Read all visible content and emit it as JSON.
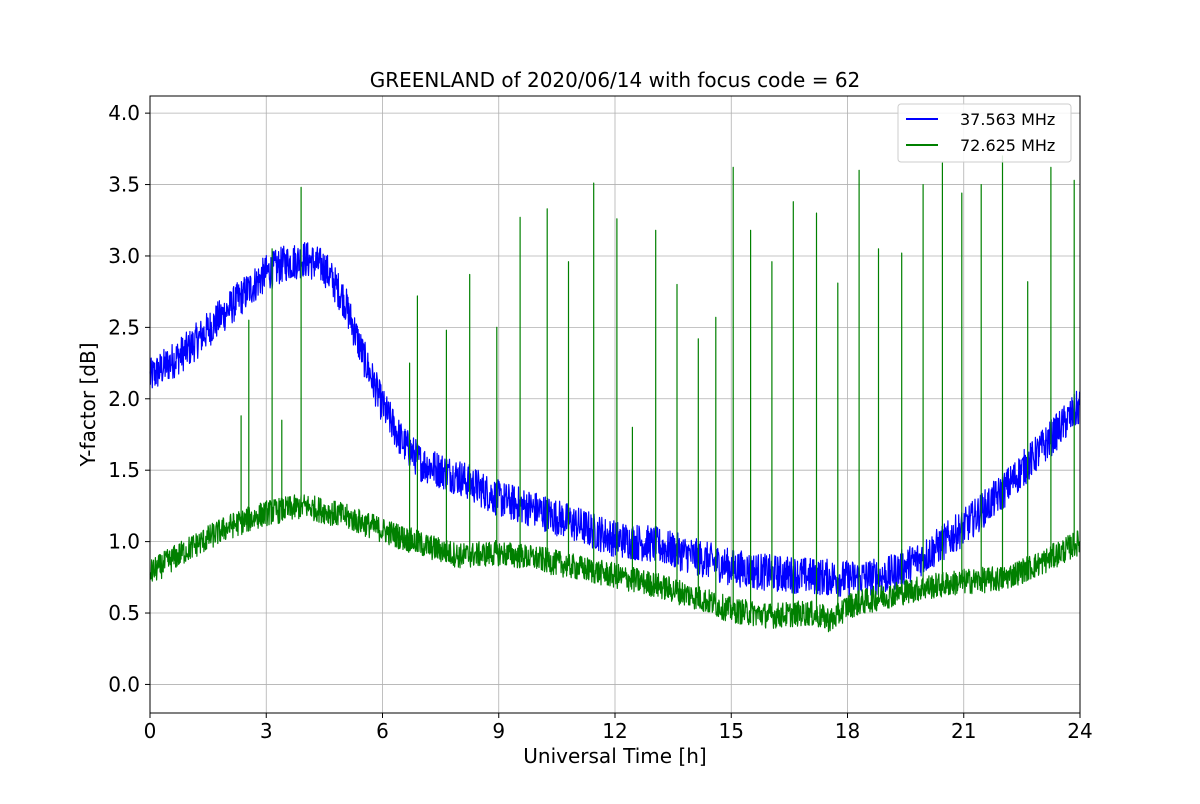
{
  "chart_data": {
    "type": "line",
    "title": "GREENLAND of 2020/06/14 with focus code = 62",
    "xlabel": "Universal Time [h]",
    "ylabel": "Y-factor [dB]",
    "xlim": [
      0,
      24
    ],
    "ylim": [
      -0.2,
      4.12
    ],
    "xticks": [
      0,
      3,
      6,
      9,
      12,
      15,
      18,
      21,
      24
    ],
    "yticks": [
      0.0,
      0.5,
      1.0,
      1.5,
      2.0,
      2.5,
      3.0,
      3.5,
      4.0
    ],
    "xtick_labels": [
      "0",
      "3",
      "6",
      "9",
      "12",
      "15",
      "18",
      "21",
      "24"
    ],
    "ytick_labels": [
      "0.0",
      "0.5",
      "1.0",
      "1.5",
      "2.0",
      "2.5",
      "3.0",
      "3.5",
      "4.0"
    ],
    "grid": true,
    "legend_position": "upper right",
    "series": [
      {
        "name": "37.563 MHz",
        "color": "#0000ff",
        "x": [
          0,
          1,
          2,
          3,
          3.5,
          4,
          4.5,
          5,
          5.5,
          6,
          6.5,
          7,
          8,
          9,
          10,
          11,
          12,
          13,
          14,
          15,
          16,
          17,
          18,
          19,
          20,
          21,
          22,
          23,
          24
        ],
        "y": [
          2.15,
          2.35,
          2.62,
          2.88,
          2.95,
          2.98,
          2.92,
          2.7,
          2.3,
          1.95,
          1.7,
          1.55,
          1.45,
          1.3,
          1.22,
          1.12,
          1.02,
          0.98,
          0.9,
          0.82,
          0.78,
          0.76,
          0.74,
          0.76,
          0.9,
          1.1,
          1.35,
          1.65,
          1.95
        ],
        "noise": 0.13
      },
      {
        "name": "72.625 MHz",
        "color": "#008000",
        "x": [
          0,
          1,
          2,
          3,
          4,
          5,
          6,
          7,
          8,
          9,
          10,
          11,
          12,
          13,
          14,
          15,
          16,
          17,
          17.6,
          18,
          19,
          20,
          21,
          22,
          23,
          24
        ],
        "y": [
          0.78,
          0.95,
          1.1,
          1.2,
          1.25,
          1.18,
          1.08,
          0.98,
          0.9,
          0.92,
          0.88,
          0.82,
          0.76,
          0.7,
          0.62,
          0.52,
          0.48,
          0.5,
          0.45,
          0.55,
          0.62,
          0.68,
          0.72,
          0.74,
          0.85,
          1.0
        ],
        "noise": 0.09,
        "spikes": [
          {
            "x": 2.35,
            "y": 1.88
          },
          {
            "x": 2.55,
            "y": 2.55
          },
          {
            "x": 3.15,
            "y": 3.05
          },
          {
            "x": 3.4,
            "y": 1.85
          },
          {
            "x": 3.9,
            "y": 3.48
          },
          {
            "x": 6.7,
            "y": 2.25
          },
          {
            "x": 6.9,
            "y": 2.72
          },
          {
            "x": 7.65,
            "y": 2.48
          },
          {
            "x": 8.25,
            "y": 2.87
          },
          {
            "x": 8.95,
            "y": 2.5
          },
          {
            "x": 9.55,
            "y": 3.27
          },
          {
            "x": 10.25,
            "y": 3.33
          },
          {
            "x": 10.8,
            "y": 2.96
          },
          {
            "x": 11.45,
            "y": 3.51
          },
          {
            "x": 12.05,
            "y": 3.26
          },
          {
            "x": 12.45,
            "y": 1.8
          },
          {
            "x": 13.05,
            "y": 3.18
          },
          {
            "x": 13.6,
            "y": 2.8
          },
          {
            "x": 14.15,
            "y": 2.42
          },
          {
            "x": 14.6,
            "y": 2.57
          },
          {
            "x": 15.05,
            "y": 3.62
          },
          {
            "x": 15.5,
            "y": 3.18
          },
          {
            "x": 16.05,
            "y": 2.96
          },
          {
            "x": 16.6,
            "y": 3.38
          },
          {
            "x": 17.2,
            "y": 3.3
          },
          {
            "x": 17.75,
            "y": 2.81
          },
          {
            "x": 18.3,
            "y": 3.6
          },
          {
            "x": 18.8,
            "y": 3.05
          },
          {
            "x": 19.4,
            "y": 3.02
          },
          {
            "x": 19.95,
            "y": 3.5
          },
          {
            "x": 20.45,
            "y": 3.65
          },
          {
            "x": 20.95,
            "y": 3.44
          },
          {
            "x": 21.45,
            "y": 3.5
          },
          {
            "x": 22.0,
            "y": 3.7
          },
          {
            "x": 22.65,
            "y": 2.82
          },
          {
            "x": 23.25,
            "y": 3.62
          },
          {
            "x": 23.85,
            "y": 3.53
          }
        ]
      }
    ]
  }
}
